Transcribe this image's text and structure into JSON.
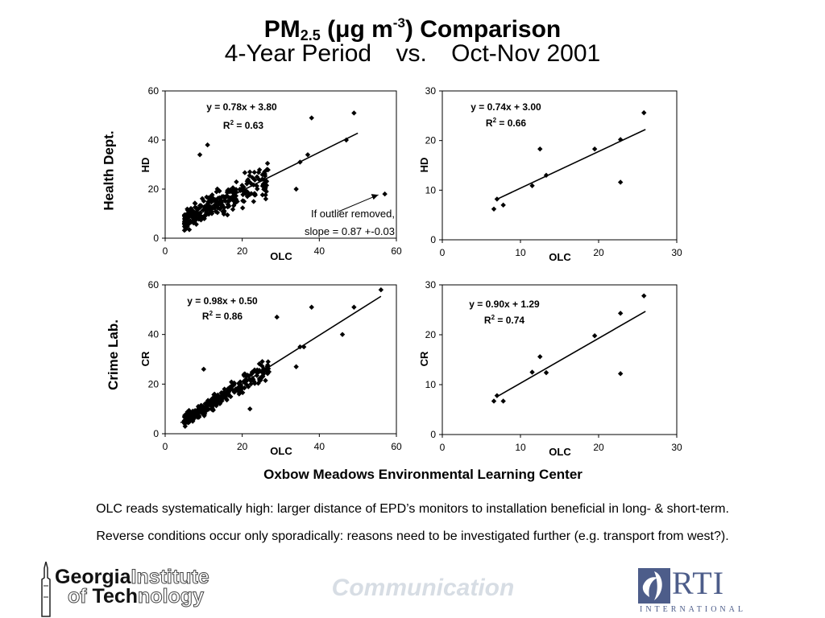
{
  "slide": {
    "title_main": "PM",
    "title_sub": "2.5",
    "title_paren_open": " (",
    "title_mu": "μ",
    "title_unit": "g m",
    "title_sup": "-3",
    "title_rest": ") Comparison",
    "subtitle_left": "4-Year Period",
    "subtitle_mid": "vs.",
    "subtitle_right": "Oct-Nov 2001",
    "row_label_top": "Health Dept.",
    "row_label_bottom": "Crime Lab.",
    "x_center_label": "Oxbow Meadows Environmental Learning Center",
    "note_1": "OLC reads systematically high: larger distance of EPD’s monitors to installation beneficial in long- & short-term.",
    "note_2": "Reverse conditions occur only sporadically: reasons need to be investigated further (e.g. transport from west?).",
    "watermark": "Communication",
    "gt_logo": {
      "word1": "Georgia",
      "word2": "Institute",
      "word3": "of ",
      "word4": "Tech",
      "word5": "nology"
    },
    "rti_logo": {
      "word": "RTI",
      "sub": "INTERNATIONAL"
    }
  },
  "chart_data": [
    {
      "type": "scatter",
      "title": "",
      "xlabel": "OLC",
      "ylabel": "HD",
      "xlim": [
        0,
        60
      ],
      "ylim": [
        0,
        60
      ],
      "xticks": [
        0,
        20,
        40,
        60
      ],
      "yticks": [
        0,
        20,
        40,
        60
      ],
      "equation": "y = 0.78x + 3.80",
      "r2_prefix": "R",
      "r2_exp": "2",
      "r2_value": " = 0.63",
      "trendline": {
        "slope": 0.78,
        "intercept": 3.8,
        "x_range": [
          5,
          50
        ]
      },
      "annotation": {
        "line1": "If outlier removed,",
        "line2": "slope = 0.87 +-0.03",
        "arrow_to": [
          57,
          18
        ]
      },
      "notable_points": [
        [
          57,
          18
        ],
        [
          49,
          51
        ],
        [
          38,
          49
        ],
        [
          47,
          40
        ],
        [
          37,
          34
        ],
        [
          35,
          31
        ],
        [
          34,
          20
        ],
        [
          11,
          38
        ],
        [
          9,
          34
        ]
      ],
      "point_cloud": {
        "x_range": [
          4,
          30
        ],
        "description": "dense cluster along trend"
      }
    },
    {
      "type": "scatter",
      "title": "",
      "xlabel": "OLC",
      "ylabel": "HD",
      "xlim": [
        0,
        30
      ],
      "ylim": [
        0,
        30
      ],
      "xticks": [
        0,
        10,
        20,
        30
      ],
      "yticks": [
        0,
        10,
        20,
        30
      ],
      "equation": "y = 0.74x + 3.00",
      "r2_prefix": "R",
      "r2_exp": "2",
      "r2_value": " = 0.66",
      "trendline": {
        "slope": 0.74,
        "intercept": 3.0,
        "x_range": [
          7,
          26
        ]
      },
      "points": [
        [
          6.6,
          6.2
        ],
        [
          7.0,
          8.2
        ],
        [
          7.8,
          7.0
        ],
        [
          11.5,
          10.9
        ],
        [
          12.5,
          18.3
        ],
        [
          13.3,
          13.0
        ],
        [
          19.5,
          18.3
        ],
        [
          22.8,
          20.2
        ],
        [
          22.8,
          11.6
        ],
        [
          25.8,
          25.6
        ]
      ]
    },
    {
      "type": "scatter",
      "title": "",
      "xlabel": "OLC",
      "ylabel": "CR",
      "xlim": [
        0,
        60
      ],
      "ylim": [
        0,
        60
      ],
      "xticks": [
        0,
        20,
        40,
        60
      ],
      "yticks": [
        0,
        20,
        40,
        60
      ],
      "equation": "y = 0.98x + 0.50",
      "r2_prefix": "R",
      "r2_exp": "2",
      "r2_value": " = 0.86",
      "trendline": {
        "slope": 0.98,
        "intercept": 0.5,
        "x_range": [
          4,
          56
        ]
      },
      "notable_points": [
        [
          56,
          58
        ],
        [
          49,
          51
        ],
        [
          38,
          51
        ],
        [
          29,
          47
        ],
        [
          46,
          40
        ],
        [
          35,
          35
        ],
        [
          36,
          35
        ],
        [
          34,
          27
        ],
        [
          10,
          26
        ],
        [
          22,
          10
        ]
      ],
      "point_cloud": {
        "x_range": [
          4,
          30
        ],
        "description": "dense cluster along trend"
      }
    },
    {
      "type": "scatter",
      "title": "",
      "xlabel": "OLC",
      "ylabel": "CR",
      "xlim": [
        0,
        30
      ],
      "ylim": [
        0,
        30
      ],
      "xticks": [
        0,
        10,
        20,
        30
      ],
      "yticks": [
        0,
        10,
        20,
        30
      ],
      "equation": "y = 0.90x + 1.29",
      "r2_prefix": "R",
      "r2_exp": "2",
      "r2_value": " = 0.74",
      "trendline": {
        "slope": 0.9,
        "intercept": 1.29,
        "x_range": [
          7,
          26
        ]
      },
      "points": [
        [
          6.6,
          6.7
        ],
        [
          7.0,
          7.8
        ],
        [
          7.8,
          6.7
        ],
        [
          11.5,
          12.5
        ],
        [
          12.5,
          15.6
        ],
        [
          13.3,
          12.4
        ],
        [
          19.5,
          19.8
        ],
        [
          22.8,
          24.3
        ],
        [
          22.8,
          12.2
        ],
        [
          25.8,
          27.8
        ]
      ]
    }
  ]
}
